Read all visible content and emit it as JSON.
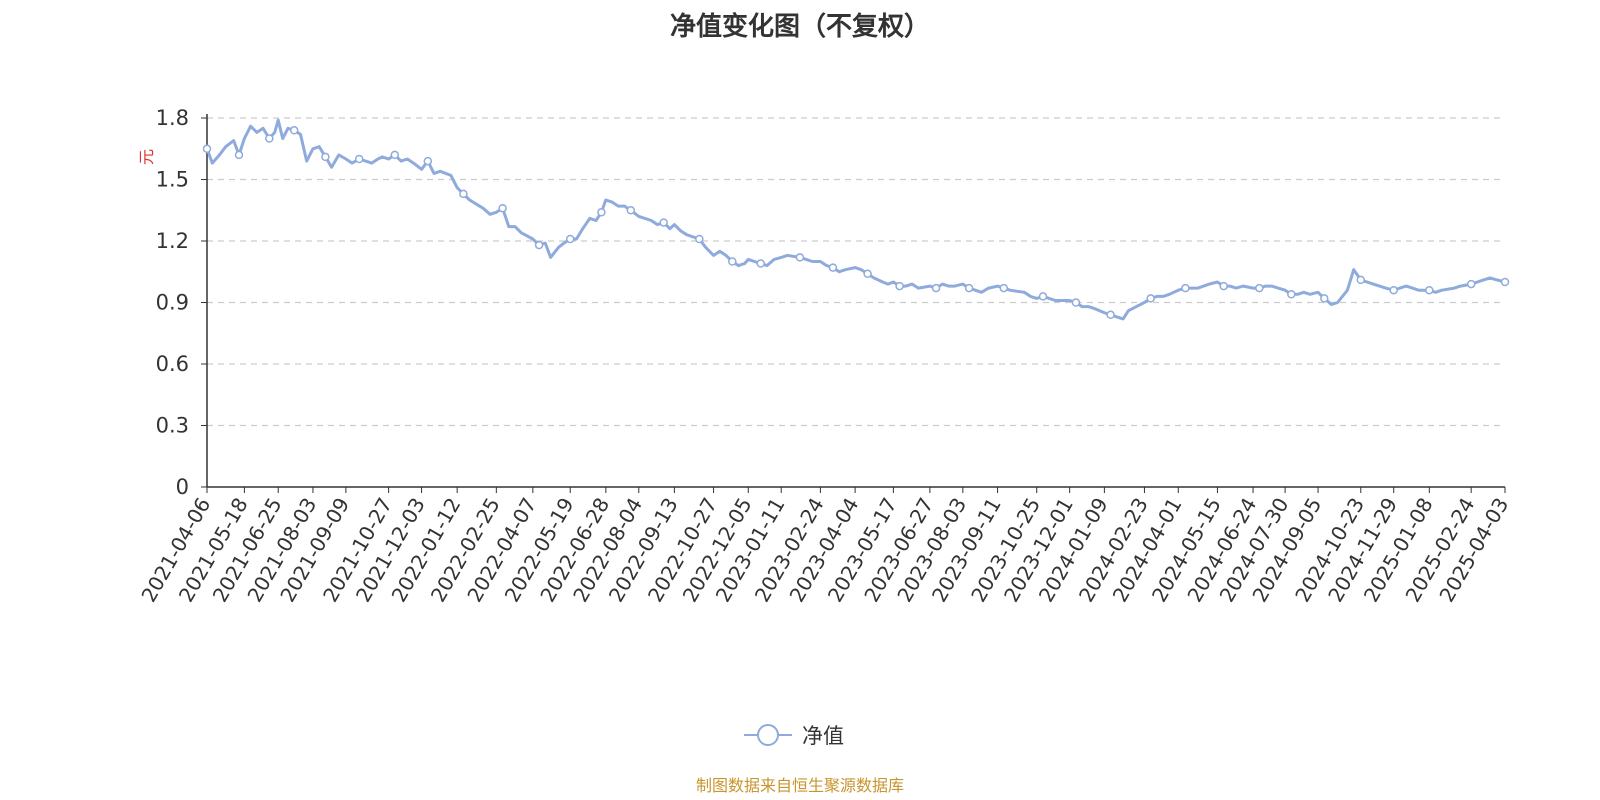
{
  "title": "净值变化图（不复权）",
  "source_note": "制图数据来自恒生聚源数据库",
  "colors": {
    "line": "#8faadc",
    "axis": "#333333",
    "grid": "#cccccc",
    "ylabel": "#e03030",
    "source": "#c8952e"
  },
  "chart_data": {
    "type": "line",
    "ylabel": "元",
    "ylim": [
      0,
      1.8
    ],
    "yticks": [
      "0",
      "0.3",
      "0.6",
      "0.9",
      "1.2",
      "1.5",
      "1.8"
    ],
    "grid": "horizontal-dashed",
    "legend_position": "bottom-center",
    "xtick_labels": [
      "2021-04-06",
      "2021-05-18",
      "2021-06-25",
      "2021-08-03",
      "2021-09-09",
      "2021-10-27",
      "2021-12-03",
      "2022-01-12",
      "2022-02-25",
      "2022-04-07",
      "2022-05-19",
      "2022-06-28",
      "2022-08-04",
      "2022-09-13",
      "2022-10-27",
      "2022-12-05",
      "2023-01-11",
      "2023-02-24",
      "2023-04-04",
      "2023-05-17",
      "2023-06-27",
      "2023-08-03",
      "2023-09-11",
      "2023-10-25",
      "2023-12-01",
      "2024-01-09",
      "2024-02-23",
      "2024-04-01",
      "2024-05-15",
      "2024-06-24",
      "2024-07-30",
      "2024-09-05",
      "2024-10-23",
      "2024-11-29",
      "2025-01-08",
      "2025-02-24",
      "2025-04-03"
    ],
    "series": [
      {
        "name": "净值",
        "x": [
          "2021-04-06",
          "2021-04-12",
          "2021-04-20",
          "2021-04-27",
          "2021-05-06",
          "2021-05-12",
          "2021-05-18",
          "2021-05-25",
          "2021-06-01",
          "2021-06-08",
          "2021-06-15",
          "2021-06-21",
          "2021-06-25",
          "2021-06-30",
          "2021-07-06",
          "2021-07-13",
          "2021-07-20",
          "2021-07-27",
          "2021-08-03",
          "2021-08-10",
          "2021-08-17",
          "2021-08-24",
          "2021-09-01",
          "2021-09-09",
          "2021-09-16",
          "2021-09-24",
          "2021-10-08",
          "2021-10-15",
          "2021-10-20",
          "2021-10-27",
          "2021-11-03",
          "2021-11-10",
          "2021-11-17",
          "2021-11-24",
          "2021-12-03",
          "2021-12-10",
          "2021-12-17",
          "2021-12-24",
          "2022-01-05",
          "2022-01-12",
          "2022-01-19",
          "2022-01-26",
          "2022-02-10",
          "2022-02-18",
          "2022-02-25",
          "2022-03-04",
          "2022-03-11",
          "2022-03-18",
          "2022-03-25",
          "2022-04-07",
          "2022-04-14",
          "2022-04-21",
          "2022-04-27",
          "2022-05-06",
          "2022-05-12",
          "2022-05-19",
          "2022-05-26",
          "2022-06-02",
          "2022-06-10",
          "2022-06-17",
          "2022-06-23",
          "2022-06-28",
          "2022-07-05",
          "2022-07-12",
          "2022-07-19",
          "2022-07-26",
          "2022-08-04",
          "2022-08-11",
          "2022-08-18",
          "2022-08-25",
          "2022-09-01",
          "2022-09-08",
          "2022-09-13",
          "2022-09-20",
          "2022-09-27",
          "2022-10-11",
          "2022-10-18",
          "2022-10-27",
          "2022-11-03",
          "2022-11-10",
          "2022-11-17",
          "2022-11-24",
          "2022-12-01",
          "2022-12-05",
          "2022-12-12",
          "2022-12-19",
          "2022-12-26",
          "2023-01-03",
          "2023-01-11",
          "2023-01-18",
          "2023-02-01",
          "2023-02-08",
          "2023-02-15",
          "2023-02-24",
          "2023-03-03",
          "2023-03-10",
          "2023-03-17",
          "2023-03-24",
          "2023-04-04",
          "2023-04-11",
          "2023-04-18",
          "2023-04-25",
          "2023-05-05",
          "2023-05-11",
          "2023-05-17",
          "2023-05-24",
          "2023-05-31",
          "2023-06-07",
          "2023-06-14",
          "2023-06-27",
          "2023-07-04",
          "2023-07-11",
          "2023-07-18",
          "2023-07-25",
          "2023-08-03",
          "2023-08-10",
          "2023-08-17",
          "2023-08-24",
          "2023-09-01",
          "2023-09-11",
          "2023-09-18",
          "2023-09-25",
          "2023-10-11",
          "2023-10-18",
          "2023-10-25",
          "2023-11-01",
          "2023-11-08",
          "2023-11-15",
          "2023-11-22",
          "2023-12-01",
          "2023-12-08",
          "2023-12-15",
          "2023-12-22",
          "2023-12-29",
          "2024-01-09",
          "2024-01-16",
          "2024-01-23",
          "2024-01-30",
          "2024-02-05",
          "2024-02-23",
          "2024-03-01",
          "2024-03-08",
          "2024-03-15",
          "2024-03-22",
          "2024-04-01",
          "2024-04-09",
          "2024-04-16",
          "2024-04-23",
          "2024-05-06",
          "2024-05-15",
          "2024-05-22",
          "2024-05-29",
          "2024-06-05",
          "2024-06-13",
          "2024-06-24",
          "2024-07-01",
          "2024-07-08",
          "2024-07-15",
          "2024-07-22",
          "2024-07-30",
          "2024-08-06",
          "2024-08-13",
          "2024-08-20",
          "2024-08-27",
          "2024-09-05",
          "2024-09-12",
          "2024-09-20",
          "2024-09-27",
          "2024-10-08",
          "2024-10-15",
          "2024-10-23",
          "2024-10-30",
          "2024-11-06",
          "2024-11-13",
          "2024-11-20",
          "2024-11-29",
          "2024-12-06",
          "2024-12-13",
          "2024-12-20",
          "2024-12-27",
          "2025-01-08",
          "2025-01-15",
          "2025-01-22",
          "2025-02-05",
          "2025-02-12",
          "2025-02-24",
          "2025-03-03",
          "2025-03-10",
          "2025-03-17",
          "2025-03-25",
          "2025-04-03"
        ],
        "values": [
          1.65,
          1.58,
          1.62,
          1.66,
          1.69,
          1.62,
          1.7,
          1.76,
          1.73,
          1.75,
          1.7,
          1.73,
          1.79,
          1.7,
          1.75,
          1.74,
          1.72,
          1.59,
          1.65,
          1.66,
          1.61,
          1.56,
          1.62,
          1.6,
          1.58,
          1.6,
          1.58,
          1.6,
          1.61,
          1.6,
          1.62,
          1.59,
          1.6,
          1.58,
          1.55,
          1.59,
          1.53,
          1.54,
          1.52,
          1.46,
          1.43,
          1.4,
          1.36,
          1.33,
          1.34,
          1.36,
          1.27,
          1.27,
          1.24,
          1.21,
          1.18,
          1.19,
          1.12,
          1.17,
          1.19,
          1.21,
          1.21,
          1.26,
          1.31,
          1.3,
          1.34,
          1.4,
          1.39,
          1.37,
          1.37,
          1.35,
          1.32,
          1.31,
          1.3,
          1.28,
          1.29,
          1.26,
          1.28,
          1.25,
          1.23,
          1.21,
          1.17,
          1.13,
          1.15,
          1.13,
          1.1,
          1.08,
          1.09,
          1.11,
          1.1,
          1.09,
          1.08,
          1.11,
          1.12,
          1.13,
          1.12,
          1.11,
          1.1,
          1.1,
          1.08,
          1.07,
          1.05,
          1.06,
          1.07,
          1.06,
          1.04,
          1.02,
          1.0,
          0.99,
          1.0,
          0.98,
          0.98,
          0.99,
          0.97,
          0.98,
          0.97,
          0.99,
          0.98,
          0.98,
          0.99,
          0.97,
          0.96,
          0.95,
          0.97,
          0.98,
          0.97,
          0.96,
          0.95,
          0.93,
          0.92,
          0.93,
          0.92,
          0.91,
          0.91,
          0.91,
          0.9,
          0.88,
          0.88,
          0.87,
          0.85,
          0.84,
          0.83,
          0.82,
          0.86,
          0.9,
          0.92,
          0.93,
          0.93,
          0.94,
          0.96,
          0.97,
          0.97,
          0.97,
          0.99,
          1.0,
          0.98,
          0.98,
          0.97,
          0.98,
          0.97,
          0.97,
          0.98,
          0.98,
          0.97,
          0.96,
          0.94,
          0.94,
          0.95,
          0.94,
          0.95,
          0.92,
          0.89,
          0.9,
          0.96,
          1.06,
          1.01,
          1.0,
          0.99,
          0.98,
          0.97,
          0.96,
          0.97,
          0.98,
          0.97,
          0.96,
          0.96,
          0.95,
          0.96,
          0.97,
          0.98,
          0.99,
          1.0,
          1.01,
          1.02,
          1.01,
          1.0
        ]
      }
    ]
  }
}
